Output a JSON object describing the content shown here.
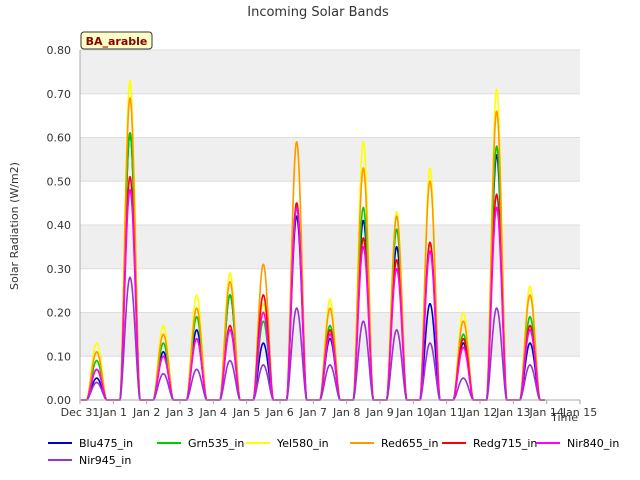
{
  "chart_data": {
    "type": "line",
    "title": "Incoming Solar Bands",
    "xlabel": "Time",
    "ylabel": "Solar Radiation (W/m2)",
    "badge": "BA_arable",
    "ylim": [
      0.0,
      0.8
    ],
    "yticks": [
      0.0,
      0.1,
      0.2,
      0.3,
      0.4,
      0.5,
      0.6,
      0.7,
      0.8
    ],
    "ytick_labels": [
      "0.00",
      "0.10",
      "0.20",
      "0.30",
      "0.40",
      "0.50",
      "0.60",
      "0.70",
      "0.80"
    ],
    "xlim": [
      0,
      15
    ],
    "xtick_labels": [
      "Dec 31",
      "Jan 1",
      "Jan 2",
      "Jan 3",
      "Jan 4",
      "Jan 5",
      "Jan 6",
      "Jan 7",
      "Jan 8",
      "Jan 9",
      "Jan 10",
      "Jan 11",
      "Jan 12",
      "Jan 13",
      "Jan 14",
      "Jan 15"
    ],
    "grid": true,
    "days": [
      0.5,
      1.5,
      2.5,
      3.5,
      4.5,
      5.5,
      6.5,
      7.5,
      8.5,
      9.5,
      10.5,
      11.5,
      12.5,
      13.5
    ],
    "series": [
      {
        "name": "Blu475_in",
        "color": "#0000cc",
        "peaks": [
          0.05,
          0.61,
          0.11,
          0.16,
          0.24,
          0.13,
          0.42,
          0.14,
          0.41,
          0.35,
          0.22,
          0.13,
          0.56,
          0.13
        ]
      },
      {
        "name": "Grn535_in",
        "color": "#00cc00",
        "peaks": [
          0.09,
          0.61,
          0.13,
          0.19,
          0.24,
          0.18,
          0.45,
          0.17,
          0.44,
          0.39,
          0.36,
          0.15,
          0.58,
          0.19
        ]
      },
      {
        "name": "Yel580_in",
        "color": "#ffff00",
        "peaks": [
          0.13,
          0.73,
          0.17,
          0.24,
          0.29,
          0.22,
          0.59,
          0.23,
          0.59,
          0.43,
          0.53,
          0.2,
          0.71,
          0.26
        ]
      },
      {
        "name": "Red655_in",
        "color": "#ff9900",
        "peaks": [
          0.11,
          0.69,
          0.15,
          0.21,
          0.27,
          0.31,
          0.59,
          0.21,
          0.53,
          0.42,
          0.5,
          0.18,
          0.66,
          0.24
        ]
      },
      {
        "name": "Redg715_in",
        "color": "#ff0000",
        "peaks": [
          0.07,
          0.51,
          0.1,
          0.14,
          0.17,
          0.24,
          0.45,
          0.16,
          0.37,
          0.32,
          0.36,
          0.14,
          0.47,
          0.17
        ]
      },
      {
        "name": "Nir840_in",
        "color": "#ff00ff",
        "peaks": [
          0.07,
          0.48,
          0.1,
          0.14,
          0.16,
          0.2,
          0.44,
          0.15,
          0.35,
          0.3,
          0.34,
          0.12,
          0.44,
          0.16
        ]
      },
      {
        "name": "Nir945_in",
        "color": "#9933cc",
        "peaks": [
          0.04,
          0.28,
          0.06,
          0.07,
          0.09,
          0.08,
          0.21,
          0.08,
          0.18,
          0.16,
          0.13,
          0.05,
          0.21,
          0.08
        ]
      }
    ]
  }
}
